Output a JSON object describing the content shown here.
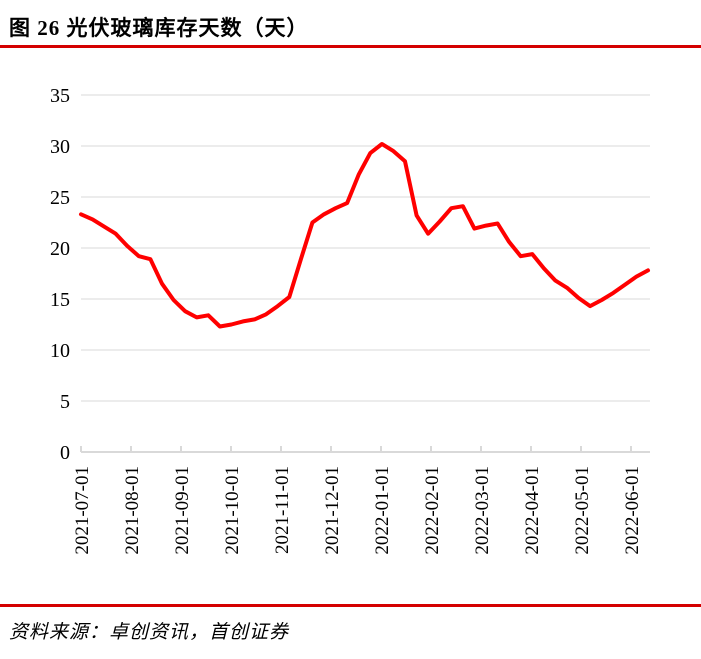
{
  "header": {
    "title": "图 26 光伏玻璃库存天数（天）"
  },
  "footer": {
    "source": "资料来源：卓创资讯，首创证券"
  },
  "colors": {
    "accent_red": "#D40000",
    "line_red": "#FF0000",
    "grid_gray": "#D9D9D9",
    "text_black": "#000000"
  },
  "chart_data": {
    "type": "line",
    "title": "光伏玻璃库存天数（天）",
    "xlabel": "",
    "ylabel": "",
    "ylim": [
      0,
      35
    ],
    "y_ticks": [
      0,
      5,
      10,
      15,
      20,
      25,
      30,
      35
    ],
    "grid": "horizontal-only",
    "legend": "none",
    "line_width": 4,
    "x_tick_labels": [
      "2021-07-01",
      "2021-08-01",
      "2021-09-01",
      "2021-10-01",
      "2021-11-01",
      "2021-12-01",
      "2022-01-01",
      "2022-02-01",
      "2022-03-01",
      "2022-04-01",
      "2022-05-01",
      "2022-06-01"
    ],
    "x": [
      "2021-07-02",
      "2021-07-09",
      "2021-07-16",
      "2021-07-23",
      "2021-07-30",
      "2021-08-06",
      "2021-08-13",
      "2021-08-20",
      "2021-08-27",
      "2021-09-03",
      "2021-09-10",
      "2021-09-17",
      "2021-09-24",
      "2021-10-01",
      "2021-10-08",
      "2021-10-15",
      "2021-10-22",
      "2021-10-29",
      "2021-11-05",
      "2021-11-12",
      "2021-11-19",
      "2021-11-26",
      "2021-12-03",
      "2021-12-10",
      "2021-12-17",
      "2021-12-24",
      "2021-12-31",
      "2022-01-07",
      "2022-01-14",
      "2022-01-21",
      "2022-01-28",
      "2022-02-04",
      "2022-02-11",
      "2022-02-18",
      "2022-02-25",
      "2022-03-04",
      "2022-03-11",
      "2022-03-18",
      "2022-03-25",
      "2022-04-01",
      "2022-04-08",
      "2022-04-15",
      "2022-04-22",
      "2022-04-29",
      "2022-05-06",
      "2022-05-13",
      "2022-05-20",
      "2022-05-27",
      "2022-06-03",
      "2022-06-10"
    ],
    "values": [
      23.3,
      22.8,
      22.1,
      21.4,
      20.2,
      19.2,
      18.9,
      16.5,
      14.9,
      13.8,
      13.2,
      13.4,
      12.3,
      12.5,
      12.8,
      13.0,
      13.5,
      14.3,
      15.2,
      18.9,
      22.5,
      23.3,
      23.9,
      24.4,
      27.2,
      29.3,
      30.2,
      29.5,
      28.5,
      23.2,
      21.4,
      22.6,
      23.9,
      24.1,
      21.9,
      22.2,
      22.4,
      20.6,
      19.2,
      19.4,
      18.0,
      16.8,
      16.1,
      15.1,
      14.3,
      14.9,
      15.6,
      16.4,
      17.2,
      17.8
    ]
  }
}
